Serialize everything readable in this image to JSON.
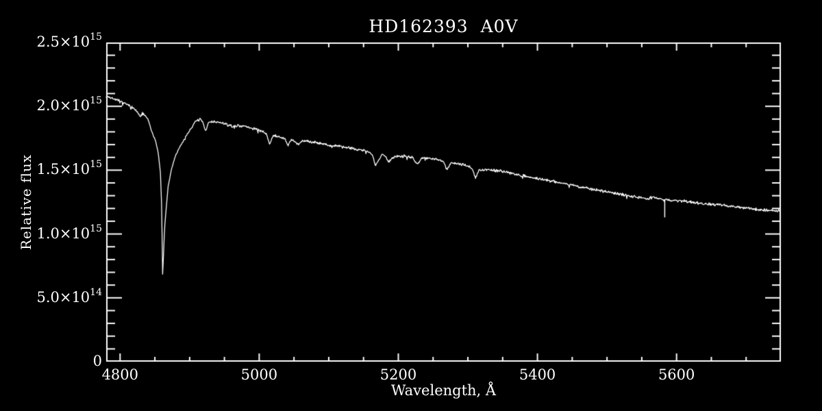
{
  "figure": {
    "background_color": "#000000",
    "foreground_color": "#ffffff"
  },
  "chart_data": {
    "type": "line",
    "title": "HD162393  A0V",
    "xlabel": "Wavelength, Å",
    "ylabel": "Relative flux",
    "xlim": [
      4780,
      5750
    ],
    "ylim": [
      0,
      2500000000000000.0
    ],
    "grid": false,
    "legend": null,
    "line_color": "#ffffff",
    "x_major_ticks": [
      4800,
      5000,
      5200,
      5400,
      5600
    ],
    "x_tick_labels": [
      "4800",
      "5000",
      "5200",
      "5400",
      "5600"
    ],
    "x_minor_tick_step": 50,
    "y_major_ticks": [
      0,
      500000000000000.0,
      1000000000000000.0,
      1500000000000000.0,
      2000000000000000.0,
      2500000000000000.0
    ],
    "y_minor_tick_step": 100000000000000.0,
    "y_tick_labels": [
      {
        "value": 0,
        "mantissa": "0",
        "exponent": ""
      },
      {
        "value": 500000000000000.0,
        "mantissa": "5.0×10",
        "exponent": "14"
      },
      {
        "value": 1000000000000000.0,
        "mantissa": "1.0×10",
        "exponent": "15"
      },
      {
        "value": 1500000000000000.0,
        "mantissa": "1.5×10",
        "exponent": "15"
      },
      {
        "value": 2000000000000000.0,
        "mantissa": "2.0×10",
        "exponent": "15"
      },
      {
        "value": 2500000000000000.0,
        "mantissa": "2.5×10",
        "exponent": "15"
      }
    ],
    "flux_unit_scale": 1000000000000000.0,
    "noise_amplitude_flux1e15": 0.014,
    "absorption_features_angstrom": [
      4830,
      4861,
      4923,
      4963,
      5015,
      5041,
      5056,
      5167,
      5186,
      5227,
      5270,
      5311
    ],
    "deepest_line": {
      "wavelength": 4861,
      "min_flux": 670000000000000.0
    },
    "artifact_spike": {
      "wavelength": 5583,
      "flux_top": 1270000000000000.0,
      "flux_bottom": 1130000000000000.0
    },
    "series": [
      {
        "name": "spectrum",
        "points_wavelength_flux1e15": [
          [
            4780,
            2.08
          ],
          [
            4790,
            2.06
          ],
          [
            4800,
            2.04
          ],
          [
            4808,
            2.02
          ],
          [
            4815,
            2.0
          ],
          [
            4820,
            1.98
          ],
          [
            4825,
            1.955
          ],
          [
            4829,
            1.915
          ],
          [
            4832,
            1.945
          ],
          [
            4836,
            1.925
          ],
          [
            4840,
            1.9
          ],
          [
            4845,
            1.81
          ],
          [
            4851,
            1.73
          ],
          [
            4855,
            1.63
          ],
          [
            4858,
            1.48
          ],
          [
            4860,
            1.18
          ],
          [
            4861,
            0.67
          ],
          [
            4862,
            0.78
          ],
          [
            4864,
            1.05
          ],
          [
            4866,
            1.18
          ],
          [
            4869,
            1.37
          ],
          [
            4874,
            1.51
          ],
          [
            4880,
            1.62
          ],
          [
            4887,
            1.69
          ],
          [
            4894,
            1.76
          ],
          [
            4901,
            1.82
          ],
          [
            4909,
            1.885
          ],
          [
            4915,
            1.9
          ],
          [
            4919,
            1.875
          ],
          [
            4923,
            1.8
          ],
          [
            4927,
            1.875
          ],
          [
            4935,
            1.88
          ],
          [
            4945,
            1.87
          ],
          [
            4952,
            1.86
          ],
          [
            4958,
            1.85
          ],
          [
            4963,
            1.835
          ],
          [
            4968,
            1.85
          ],
          [
            4978,
            1.845
          ],
          [
            4988,
            1.83
          ],
          [
            4997,
            1.82
          ],
          [
            5005,
            1.8
          ],
          [
            5010,
            1.785
          ],
          [
            5015,
            1.705
          ],
          [
            5020,
            1.77
          ],
          [
            5030,
            1.76
          ],
          [
            5037,
            1.745
          ],
          [
            5041,
            1.69
          ],
          [
            5046,
            1.74
          ],
          [
            5052,
            1.725
          ],
          [
            5056,
            1.7
          ],
          [
            5062,
            1.73
          ],
          [
            5072,
            1.725
          ],
          [
            5085,
            1.715
          ],
          [
            5100,
            1.695
          ],
          [
            5115,
            1.685
          ],
          [
            5130,
            1.675
          ],
          [
            5145,
            1.66
          ],
          [
            5158,
            1.645
          ],
          [
            5163,
            1.615
          ],
          [
            5167,
            1.535
          ],
          [
            5172,
            1.58
          ],
          [
            5177,
            1.63
          ],
          [
            5182,
            1.6
          ],
          [
            5186,
            1.565
          ],
          [
            5192,
            1.6
          ],
          [
            5200,
            1.61
          ],
          [
            5212,
            1.61
          ],
          [
            5220,
            1.6
          ],
          [
            5227,
            1.545
          ],
          [
            5233,
            1.59
          ],
          [
            5240,
            1.6
          ],
          [
            5250,
            1.59
          ],
          [
            5260,
            1.58
          ],
          [
            5266,
            1.56
          ],
          [
            5270,
            1.505
          ],
          [
            5275,
            1.555
          ],
          [
            5285,
            1.55
          ],
          [
            5295,
            1.54
          ],
          [
            5303,
            1.525
          ],
          [
            5307,
            1.5
          ],
          [
            5311,
            1.44
          ],
          [
            5316,
            1.5
          ],
          [
            5325,
            1.505
          ],
          [
            5335,
            1.5
          ],
          [
            5350,
            1.49
          ],
          [
            5365,
            1.475
          ],
          [
            5380,
            1.455
          ],
          [
            5395,
            1.44
          ],
          [
            5410,
            1.425
          ],
          [
            5425,
            1.41
          ],
          [
            5440,
            1.395
          ],
          [
            5450,
            1.385
          ],
          [
            5458,
            1.37
          ],
          [
            5468,
            1.365
          ],
          [
            5478,
            1.35
          ],
          [
            5490,
            1.34
          ],
          [
            5505,
            1.325
          ],
          [
            5520,
            1.31
          ],
          [
            5532,
            1.3
          ],
          [
            5545,
            1.29
          ],
          [
            5555,
            1.28
          ],
          [
            5565,
            1.285
          ],
          [
            5578,
            1.275
          ],
          [
            5590,
            1.265
          ],
          [
            5602,
            1.26
          ],
          [
            5615,
            1.255
          ],
          [
            5630,
            1.245
          ],
          [
            5645,
            1.235
          ],
          [
            5660,
            1.23
          ],
          [
            5675,
            1.22
          ],
          [
            5690,
            1.21
          ],
          [
            5705,
            1.2
          ],
          [
            5720,
            1.19
          ],
          [
            5735,
            1.185
          ],
          [
            5750,
            1.18
          ]
        ]
      }
    ]
  }
}
